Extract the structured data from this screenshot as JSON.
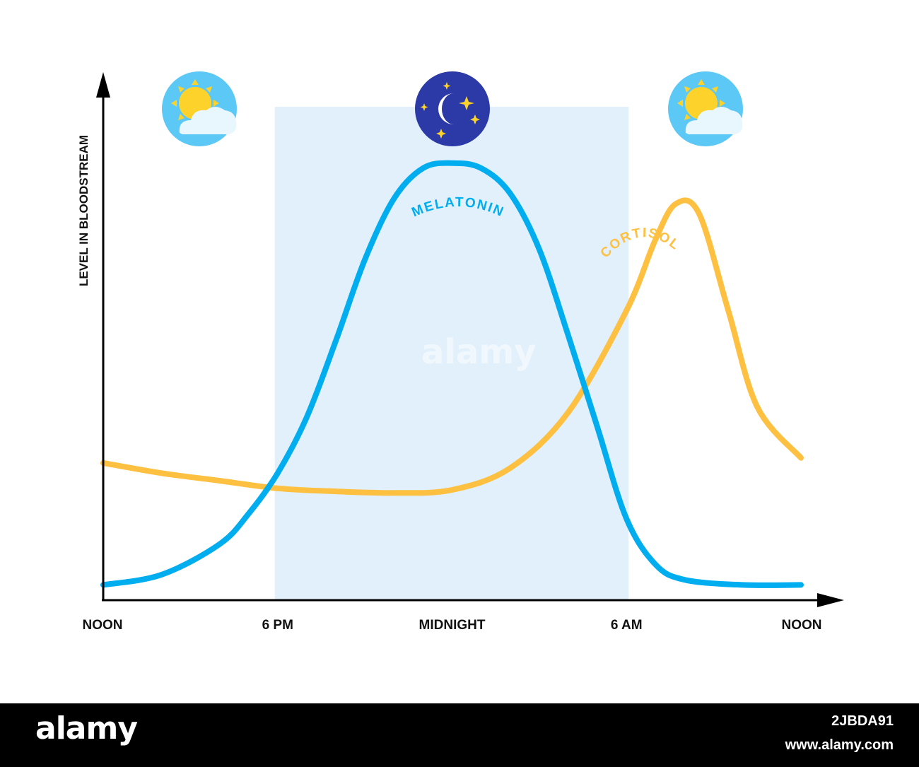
{
  "chart_data": {
    "type": "line",
    "ylabel": "LEVEL IN BLOODSTREAM",
    "x_ticks": [
      "NOON",
      "6 PM",
      "MIDNIGHT",
      "6 AM",
      "NOON"
    ],
    "x_hours": [
      0,
      6,
      12,
      18,
      24
    ],
    "x_range_hours": [
      0,
      24
    ],
    "ylim": [
      0,
      100
    ],
    "grid": false,
    "legend": "labels on curves",
    "night_band_hours": [
      6,
      18
    ],
    "series": [
      {
        "name": "MELATONIN",
        "color": "#00adef",
        "x": [
          0,
          2,
          4,
          5,
          6,
          7,
          8,
          9,
          10,
          11,
          12,
          13,
          14,
          15,
          16,
          17,
          18,
          19,
          20,
          22,
          24
        ],
        "y": [
          3,
          5,
          11,
          17,
          25,
          36,
          51,
          67,
          79,
          85,
          86,
          85,
          80,
          69,
          52,
          34,
          16,
          7,
          4,
          3,
          3
        ]
      },
      {
        "name": "CORTISOL",
        "color": "#fdc040",
        "x": [
          0,
          2,
          4,
          6,
          8,
          10,
          12,
          14,
          16,
          18,
          19,
          19.7,
          20.5,
          21.5,
          22.5,
          24
        ],
        "y": [
          27,
          25,
          23.5,
          22,
          21.4,
          21.1,
          21.7,
          26,
          37,
          57,
          71,
          78,
          76,
          57,
          38,
          28
        ]
      }
    ]
  },
  "icons": {
    "left": "sun-cloud-icon",
    "center": "moon-stars-icon",
    "right": "sun-cloud-icon"
  },
  "colors": {
    "night_band": "#e1f0fb",
    "sky_blue": "#5cc8f5",
    "night_blue": "#2b3aa6",
    "sun_yellow": "#fdd22a",
    "axis": "#000000"
  },
  "footer": {
    "logo": "alamy",
    "image_id": "2JBDA91",
    "url": "www.alamy.com"
  },
  "watermark": "alamy"
}
